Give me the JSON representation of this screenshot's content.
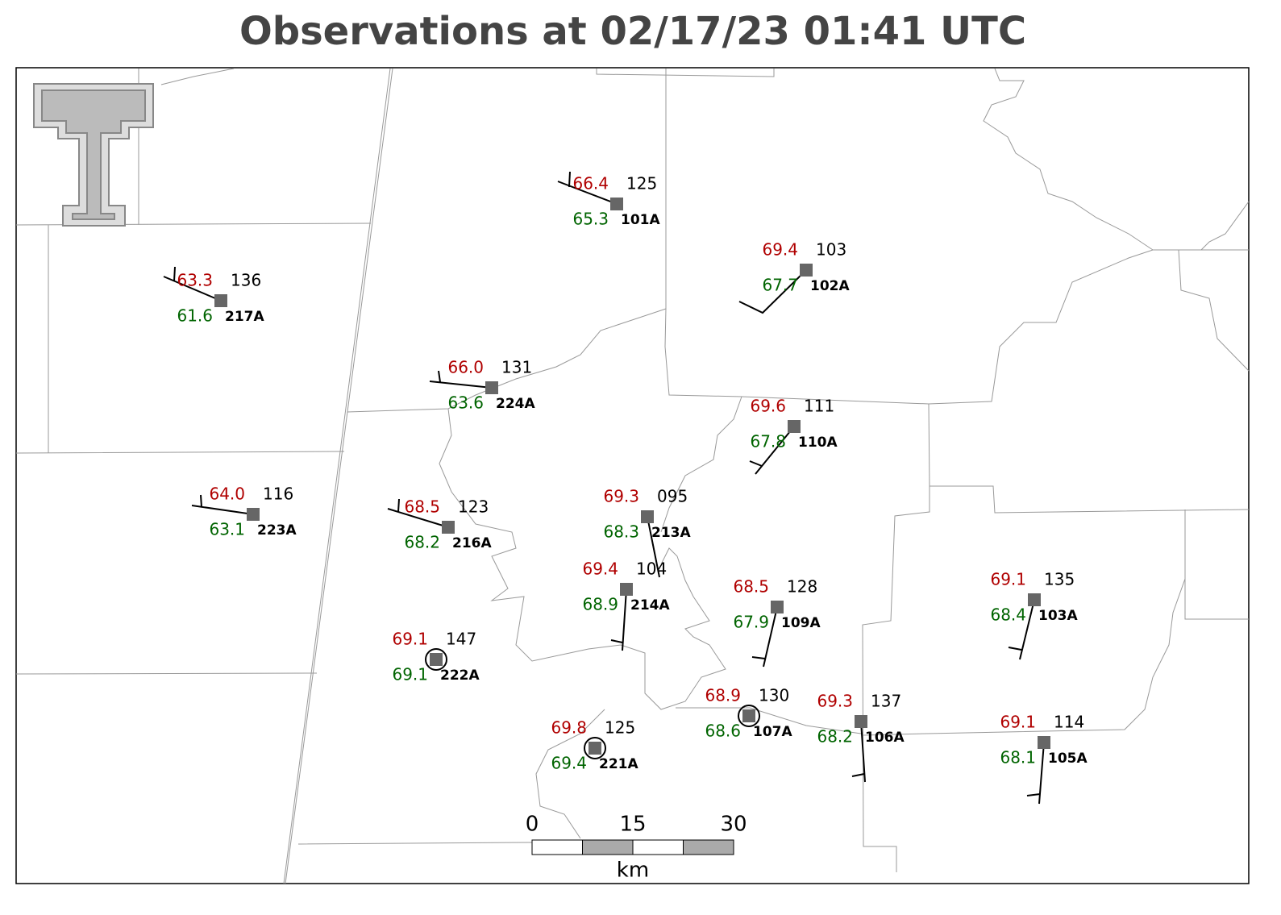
{
  "title": "Observations at 02/17/23 01:41 UTC",
  "scale_bar": {
    "labels": [
      "0",
      "15",
      "30"
    ],
    "unit": "km"
  },
  "stations": [
    {
      "id": "101A",
      "temperature": "66.4",
      "dewpoint": "65.3",
      "pressure": "125"
    },
    {
      "id": "102A",
      "temperature": "69.4",
      "dewpoint": "67.7",
      "pressure": "103"
    },
    {
      "id": "217A",
      "temperature": "63.3",
      "dewpoint": "61.6",
      "pressure": "136"
    },
    {
      "id": "224A",
      "temperature": "66.0",
      "dewpoint": "63.6",
      "pressure": "131"
    },
    {
      "id": "110A",
      "temperature": "69.6",
      "dewpoint": "67.8",
      "pressure": "111"
    },
    {
      "id": "223A",
      "temperature": "64.0",
      "dewpoint": "63.1",
      "pressure": "116"
    },
    {
      "id": "216A",
      "temperature": "68.5",
      "dewpoint": "68.2",
      "pressure": "123"
    },
    {
      "id": "213A",
      "temperature": "69.3",
      "dewpoint": "68.3",
      "pressure": "095"
    },
    {
      "id": "214A",
      "temperature": "69.4",
      "dewpoint": "68.9",
      "pressure": "104"
    },
    {
      "id": "109A",
      "temperature": "68.5",
      "dewpoint": "67.9",
      "pressure": "128"
    },
    {
      "id": "222A",
      "temperature": "69.1",
      "dewpoint": "69.1",
      "pressure": "147"
    },
    {
      "id": "221A",
      "temperature": "69.8",
      "dewpoint": "69.4",
      "pressure": "125"
    },
    {
      "id": "107A",
      "temperature": "68.9",
      "dewpoint": "68.6",
      "pressure": "130"
    },
    {
      "id": "106A",
      "temperature": "69.3",
      "dewpoint": "68.2",
      "pressure": "137"
    },
    {
      "id": "103A",
      "temperature": "69.1",
      "dewpoint": "68.4",
      "pressure": "135"
    },
    {
      "id": "105A",
      "temperature": "69.1",
      "dewpoint": "68.1",
      "pressure": "114"
    }
  ]
}
